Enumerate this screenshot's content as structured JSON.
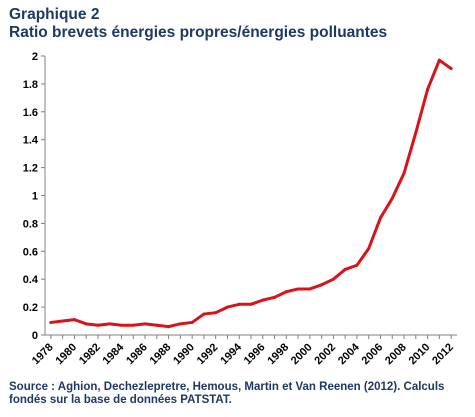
{
  "header": {
    "title": "Graphique 2",
    "subtitle": "Ratio brevets énergies propres/énergies polluantes"
  },
  "source": {
    "line1": "Source : Aghion, Dechezlepretre, Hemous, Martin et Van Reenen (2012). Calculs",
    "line2": "fondés sur la base de données PATSTAT."
  },
  "colors": {
    "title": "#1F3864",
    "series": "#D7141A",
    "axis": "#808080"
  },
  "chart_data": {
    "type": "line",
    "title": "Ratio brevets énergies propres/énergies polluantes",
    "xlabel": "",
    "ylabel": "",
    "ylim": [
      0,
      2
    ],
    "yticks": [
      "0",
      "0.2",
      "0.4",
      "0.6",
      "0.8",
      "1",
      "1.2",
      "1.4",
      "1.6",
      "1.8",
      "2"
    ],
    "xticks": [
      "1978",
      "1980",
      "1982",
      "1984",
      "1986",
      "1988",
      "1990",
      "1992",
      "1994",
      "1996",
      "1998",
      "2000",
      "2002",
      "2004",
      "2006",
      "2008",
      "2010",
      "2012"
    ],
    "grid": false,
    "legend": "none",
    "x": [
      1978,
      1979,
      1980,
      1981,
      1982,
      1983,
      1984,
      1985,
      1986,
      1987,
      1988,
      1989,
      1990,
      1991,
      1992,
      1993,
      1994,
      1995,
      1996,
      1997,
      1998,
      1999,
      2000,
      2001,
      2002,
      2003,
      2004,
      2005,
      2006,
      2007,
      2008,
      2009,
      2010,
      2011,
      2012
    ],
    "series": [
      {
        "values": [
          0.09,
          0.1,
          0.11,
          0.08,
          0.07,
          0.08,
          0.07,
          0.07,
          0.08,
          0.07,
          0.06,
          0.08,
          0.09,
          0.15,
          0.16,
          0.2,
          0.22,
          0.22,
          0.25,
          0.27,
          0.31,
          0.33,
          0.33,
          0.36,
          0.4,
          0.47,
          0.5,
          0.62,
          0.84,
          0.98,
          1.16,
          1.45,
          1.76,
          1.97,
          1.91
        ]
      }
    ]
  }
}
